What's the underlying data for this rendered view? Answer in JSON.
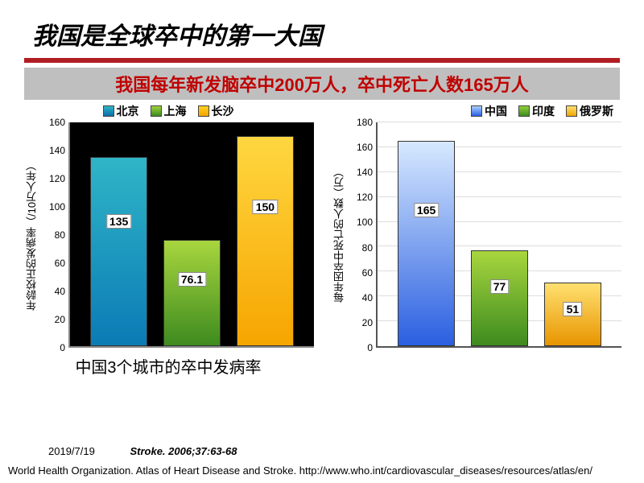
{
  "title": "我国是全球卒中的第一大国",
  "subtitle": "我国每年新发脑卒中200万人，卒中死亡人数165万人",
  "left_chart": {
    "type": "bar",
    "legend": [
      {
        "label": "北京",
        "color_top": "#2fb5c7",
        "color_bot": "#0b6ea8"
      },
      {
        "label": "上海",
        "color_top": "#9ed23a",
        "color_bot": "#3e8b1f"
      },
      {
        "label": "长沙",
        "color_top": "#ffd022",
        "color_bot": "#f6a500"
      }
    ],
    "ylabel": "年龄校正的发病率（/10万人年）",
    "ymax": 160,
    "ytick_step": 20,
    "background": "#000000",
    "bars": [
      {
        "value": 135,
        "label": "135",
        "gradient": "linear-gradient(180deg,#2fb5c7,#0b7bb5)"
      },
      {
        "value": 76.1,
        "label": "76.1",
        "gradient": "linear-gradient(180deg,#a8d63e,#3e8b1f)"
      },
      {
        "value": 150,
        "label": "150",
        "gradient": "linear-gradient(180deg,#ffd740,#f6a500)"
      }
    ],
    "caption": "中国3个城市的卒中发病率"
  },
  "right_chart": {
    "type": "bar",
    "legend": [
      {
        "label": "中国",
        "color_top": "#a9cfff",
        "color_bot": "#2a5fe0"
      },
      {
        "label": "印度",
        "color_top": "#8fd038",
        "color_bot": "#3e8b1f"
      },
      {
        "label": "俄罗斯",
        "color_top": "#ffe070",
        "color_bot": "#f0a500"
      }
    ],
    "ylabel": "每年因卒中死亡的人数（万）",
    "ymax": 180,
    "ytick_step": 20,
    "background": "#ffffff",
    "grid_color": "#dddddd",
    "bars": [
      {
        "value": 165,
        "label": "165",
        "gradient": "linear-gradient(180deg,#d7e9ff,#2a5fe0)"
      },
      {
        "value": 77,
        "label": "77",
        "gradient": "linear-gradient(180deg,#a8d63e,#3e8b1f)"
      },
      {
        "value": 51,
        "label": "51",
        "gradient": "linear-gradient(180deg,#ffe070,#e89500)"
      }
    ],
    "caption": ""
  },
  "footer_date": "2019/7/19",
  "footer_source": "Stroke. 2006;37:63-68",
  "footer_long": "World Health Organization. Atlas of Heart Disease and Stroke. http://www.who.int/cardiovascular_diseases/resources/atlas/en/"
}
